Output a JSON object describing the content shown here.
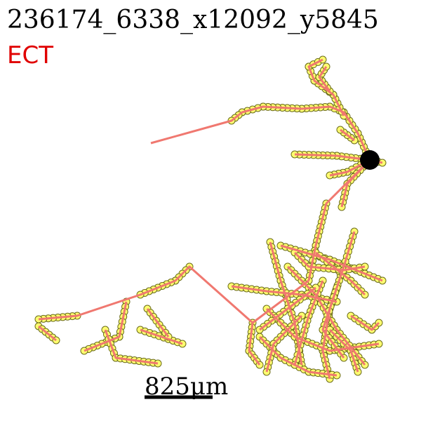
{
  "title": "236174_6338_x12092_y5845",
  "label": "ECT",
  "scale_bar": "825μm"
}
